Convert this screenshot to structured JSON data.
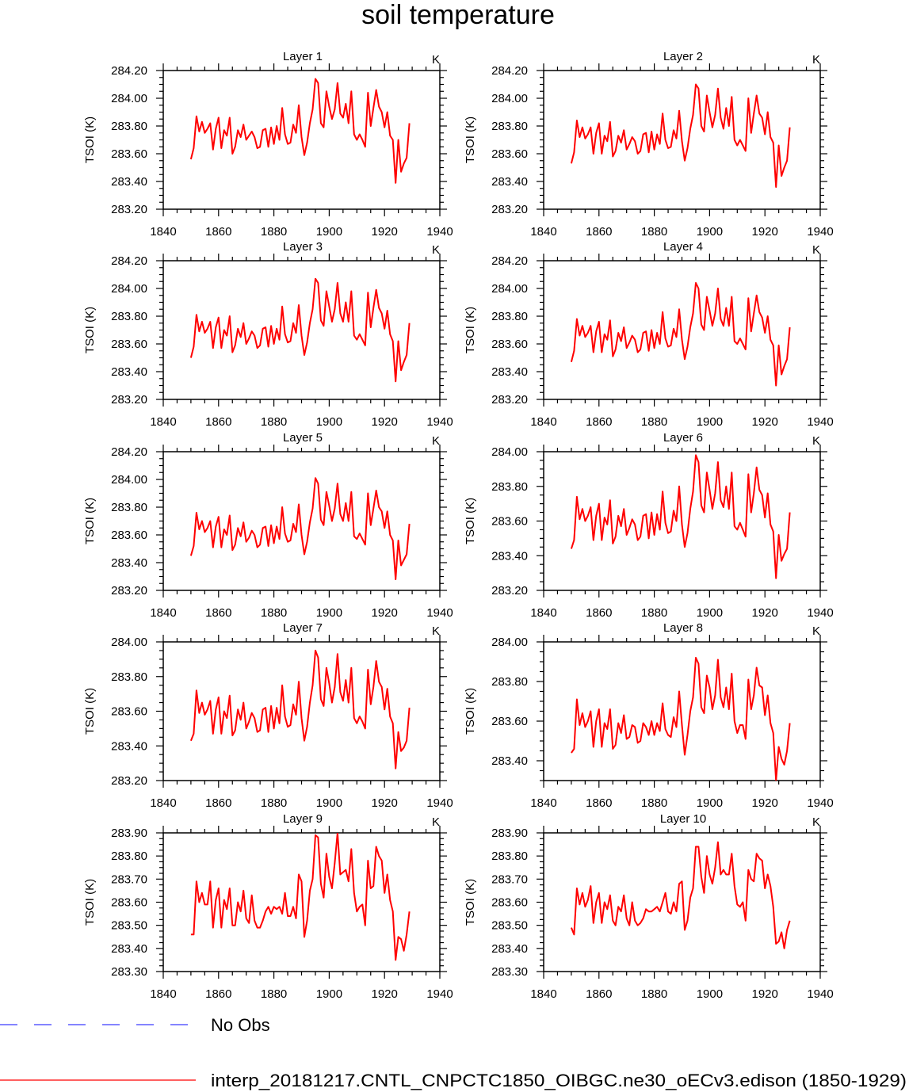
{
  "chart_data": {
    "type": "line",
    "title": "soil temperature",
    "ylabel": "TSOI  (K)",
    "units_label": "K",
    "x_ticks": [
      1840,
      1860,
      1880,
      1900,
      1920,
      1940
    ],
    "xlim": [
      1840,
      1940
    ],
    "x": [
      1850,
      1851,
      1852,
      1853,
      1854,
      1855,
      1856,
      1857,
      1858,
      1859,
      1860,
      1861,
      1862,
      1863,
      1864,
      1865,
      1866,
      1867,
      1868,
      1869,
      1870,
      1871,
      1872,
      1873,
      1874,
      1875,
      1876,
      1877,
      1878,
      1879,
      1880,
      1881,
      1882,
      1883,
      1884,
      1885,
      1886,
      1887,
      1888,
      1889,
      1890,
      1891,
      1892,
      1893,
      1894,
      1895,
      1896,
      1897,
      1898,
      1899,
      1900,
      1901,
      1902,
      1903,
      1904,
      1905,
      1906,
      1907,
      1908,
      1909,
      1910,
      1911,
      1912,
      1913,
      1914,
      1915,
      1916,
      1917,
      1918,
      1919,
      1920,
      1921,
      1922,
      1923,
      1924,
      1925,
      1926,
      1927,
      1928,
      1929
    ],
    "line_color": "#ff0000",
    "obs_color": "#3a3aff",
    "panels": [
      {
        "title": "Layer 1",
        "ylim": [
          283.2,
          284.2
        ],
        "y_ticks": [
          "283.20",
          "283.40",
          "283.60",
          "283.80",
          "284.00",
          "284.20"
        ],
        "values": [
          283.56,
          283.64,
          283.87,
          283.76,
          283.83,
          283.75,
          283.78,
          283.82,
          283.63,
          283.78,
          283.86,
          283.64,
          283.77,
          283.73,
          283.86,
          283.6,
          283.65,
          283.77,
          283.72,
          283.81,
          283.7,
          283.73,
          283.76,
          283.72,
          283.64,
          283.65,
          283.77,
          283.78,
          283.65,
          283.79,
          283.67,
          283.8,
          283.7,
          283.93,
          283.74,
          283.67,
          283.68,
          283.81,
          283.75,
          283.95,
          283.72,
          283.59,
          283.68,
          283.82,
          283.92,
          284.14,
          284.11,
          283.82,
          283.79,
          284.05,
          283.94,
          283.85,
          283.92,
          284.11,
          283.89,
          283.86,
          283.96,
          283.82,
          284.05,
          283.74,
          283.7,
          283.74,
          283.7,
          283.65,
          284.04,
          283.8,
          283.93,
          284.06,
          283.94,
          283.9,
          283.79,
          283.9,
          283.73,
          283.7,
          283.39,
          283.7,
          283.47,
          283.53,
          283.57,
          283.82
        ]
      },
      {
        "title": "Layer 2",
        "ylim": [
          283.2,
          284.2
        ],
        "y_ticks": [
          "283.20",
          "283.40",
          "283.60",
          "283.80",
          "284.00",
          "284.20"
        ],
        "values": [
          283.53,
          283.61,
          283.84,
          283.72,
          283.79,
          283.71,
          283.74,
          283.79,
          283.6,
          283.75,
          283.82,
          283.6,
          283.73,
          283.69,
          283.83,
          283.58,
          283.62,
          283.73,
          283.68,
          283.77,
          283.63,
          283.67,
          283.72,
          283.69,
          283.6,
          283.62,
          283.74,
          283.75,
          283.61,
          283.76,
          283.63,
          283.74,
          283.67,
          283.89,
          283.7,
          283.64,
          283.65,
          283.77,
          283.71,
          283.91,
          283.69,
          283.55,
          283.64,
          283.78,
          283.88,
          284.1,
          284.07,
          283.8,
          283.76,
          284.02,
          283.9,
          283.79,
          283.88,
          284.07,
          283.86,
          283.78,
          283.93,
          283.8,
          284.01,
          283.7,
          283.66,
          283.7,
          283.66,
          283.62,
          284.0,
          283.75,
          283.89,
          284.02,
          283.89,
          283.86,
          283.74,
          283.9,
          283.72,
          283.68,
          283.36,
          283.66,
          283.44,
          283.5,
          283.55,
          283.79
        ]
      },
      {
        "title": "Layer 3",
        "ylim": [
          283.2,
          284.2
        ],
        "y_ticks": [
          "283.20",
          "283.40",
          "283.60",
          "283.80",
          "284.00",
          "284.20"
        ],
        "values": [
          283.5,
          283.58,
          283.81,
          283.69,
          283.76,
          283.68,
          283.71,
          283.76,
          283.57,
          283.72,
          283.79,
          283.57,
          283.7,
          283.66,
          283.8,
          283.54,
          283.59,
          283.71,
          283.65,
          283.75,
          283.6,
          283.64,
          283.69,
          283.66,
          283.57,
          283.59,
          283.71,
          283.72,
          283.58,
          283.73,
          283.6,
          283.71,
          283.63,
          283.87,
          283.67,
          283.61,
          283.62,
          283.75,
          283.68,
          283.88,
          283.66,
          283.52,
          283.61,
          283.75,
          283.85,
          284.07,
          284.04,
          283.77,
          283.73,
          283.98,
          283.87,
          283.76,
          283.85,
          284.04,
          283.82,
          283.76,
          283.9,
          283.76,
          283.98,
          283.66,
          283.63,
          283.67,
          283.63,
          283.59,
          283.97,
          283.72,
          283.86,
          283.99,
          283.86,
          283.82,
          283.71,
          283.84,
          283.67,
          283.62,
          283.33,
          283.62,
          283.41,
          283.47,
          283.52,
          283.75
        ]
      },
      {
        "title": "Layer 4",
        "ylim": [
          283.2,
          284.2
        ],
        "y_ticks": [
          "283.20",
          "283.40",
          "283.60",
          "283.80",
          "284.00",
          "284.20"
        ],
        "values": [
          283.47,
          283.55,
          283.78,
          283.66,
          283.73,
          283.65,
          283.68,
          283.73,
          283.54,
          283.69,
          283.76,
          283.54,
          283.67,
          283.63,
          283.77,
          283.51,
          283.56,
          283.68,
          283.62,
          283.72,
          283.57,
          283.61,
          283.66,
          283.63,
          283.54,
          283.56,
          283.68,
          283.69,
          283.55,
          283.7,
          283.57,
          283.68,
          283.6,
          283.83,
          283.64,
          283.58,
          283.59,
          283.71,
          283.65,
          283.85,
          283.63,
          283.49,
          283.58,
          283.72,
          283.82,
          284.04,
          284.0,
          283.74,
          283.7,
          283.94,
          283.84,
          283.73,
          283.82,
          284.0,
          283.78,
          283.73,
          283.86,
          283.73,
          283.94,
          283.62,
          283.6,
          283.64,
          283.6,
          283.56,
          283.93,
          283.69,
          283.82,
          283.95,
          283.83,
          283.79,
          283.68,
          283.8,
          283.63,
          283.59,
          283.3,
          283.59,
          283.38,
          283.44,
          283.49,
          283.72
        ]
      },
      {
        "title": "Layer 5",
        "ylim": [
          283.2,
          284.2
        ],
        "y_ticks": [
          "283.20",
          "283.40",
          "283.60",
          "283.80",
          "284.00",
          "284.20"
        ],
        "values": [
          283.45,
          283.52,
          283.76,
          283.64,
          283.7,
          283.62,
          283.65,
          283.7,
          283.51,
          283.66,
          283.73,
          283.51,
          283.64,
          283.6,
          283.74,
          283.49,
          283.53,
          283.65,
          283.59,
          283.69,
          283.55,
          283.58,
          283.63,
          283.6,
          283.51,
          283.53,
          283.65,
          283.66,
          283.52,
          283.67,
          283.54,
          283.66,
          283.57,
          283.8,
          283.61,
          283.55,
          283.56,
          283.68,
          283.62,
          283.82,
          283.6,
          283.46,
          283.55,
          283.69,
          283.79,
          284.01,
          283.97,
          283.71,
          283.67,
          283.91,
          283.81,
          283.7,
          283.79,
          283.97,
          283.75,
          283.7,
          283.83,
          283.7,
          283.91,
          283.59,
          283.57,
          283.61,
          283.57,
          283.53,
          283.9,
          283.67,
          283.79,
          283.92,
          283.8,
          283.77,
          283.65,
          283.77,
          283.6,
          283.56,
          283.28,
          283.56,
          283.38,
          283.42,
          283.46,
          283.68
        ]
      },
      {
        "title": "Layer 6",
        "ylim": [
          283.2,
          284.0
        ],
        "y_ticks": [
          "283.20",
          "283.40",
          "283.60",
          "283.80",
          "284.00"
        ],
        "values": [
          283.44,
          283.49,
          283.74,
          283.61,
          283.67,
          283.6,
          283.63,
          283.68,
          283.49,
          283.63,
          283.7,
          283.49,
          283.62,
          283.58,
          283.72,
          283.47,
          283.51,
          283.63,
          283.57,
          283.67,
          283.52,
          283.56,
          283.61,
          283.58,
          283.49,
          283.51,
          283.63,
          283.64,
          283.5,
          283.65,
          283.52,
          283.64,
          283.55,
          283.77,
          283.59,
          283.53,
          283.54,
          283.66,
          283.6,
          283.8,
          283.58,
          283.45,
          283.53,
          283.67,
          283.77,
          283.98,
          283.94,
          283.69,
          283.65,
          283.88,
          283.78,
          283.67,
          283.76,
          283.94,
          283.72,
          283.68,
          283.8,
          283.67,
          283.88,
          283.57,
          283.55,
          283.59,
          283.55,
          283.51,
          283.87,
          283.65,
          283.76,
          283.91,
          283.78,
          283.75,
          283.62,
          283.76,
          283.58,
          283.54,
          283.27,
          283.52,
          283.37,
          283.41,
          283.44,
          283.65
        ]
      },
      {
        "title": "Layer 7",
        "ylim": [
          283.2,
          284.0
        ],
        "y_ticks": [
          "283.20",
          "283.40",
          "283.60",
          "283.80",
          "284.00"
        ],
        "values": [
          283.43,
          283.47,
          283.72,
          283.59,
          283.65,
          283.58,
          283.61,
          283.66,
          283.47,
          283.61,
          283.68,
          283.47,
          283.6,
          283.56,
          283.69,
          283.46,
          283.49,
          283.61,
          283.55,
          283.65,
          283.5,
          283.54,
          283.59,
          283.56,
          283.48,
          283.49,
          283.61,
          283.62,
          283.48,
          283.63,
          283.5,
          283.62,
          283.53,
          283.75,
          283.57,
          283.51,
          283.52,
          283.64,
          283.58,
          283.77,
          283.56,
          283.43,
          283.51,
          283.65,
          283.75,
          283.95,
          283.91,
          283.67,
          283.63,
          283.85,
          283.76,
          283.65,
          283.74,
          283.93,
          283.71,
          283.66,
          283.78,
          283.65,
          283.85,
          283.56,
          283.53,
          283.57,
          283.54,
          283.5,
          283.84,
          283.64,
          283.74,
          283.89,
          283.77,
          283.74,
          283.61,
          283.73,
          283.57,
          283.53,
          283.27,
          283.48,
          283.37,
          283.39,
          283.43,
          283.62
        ]
      },
      {
        "title": "Layer 8",
        "ylim": [
          283.3,
          284.0
        ],
        "y_ticks": [
          "283.40",
          "283.60",
          "283.80",
          "284.00"
        ],
        "values": [
          283.44,
          283.46,
          283.71,
          283.58,
          283.64,
          283.57,
          283.6,
          283.65,
          283.47,
          283.6,
          283.66,
          283.47,
          283.59,
          283.56,
          283.66,
          283.46,
          283.48,
          283.59,
          283.54,
          283.63,
          283.51,
          283.52,
          283.58,
          283.57,
          283.49,
          283.5,
          283.59,
          283.57,
          283.53,
          283.6,
          283.53,
          283.59,
          283.55,
          283.69,
          283.56,
          283.53,
          283.52,
          283.62,
          283.57,
          283.75,
          283.58,
          283.43,
          283.53,
          283.65,
          283.72,
          283.92,
          283.89,
          283.67,
          283.64,
          283.83,
          283.77,
          283.66,
          283.73,
          283.91,
          283.72,
          283.67,
          283.77,
          283.66,
          283.84,
          283.6,
          283.54,
          283.58,
          283.58,
          283.51,
          283.81,
          283.66,
          283.73,
          283.87,
          283.78,
          283.77,
          283.63,
          283.73,
          283.59,
          283.54,
          283.3,
          283.47,
          283.41,
          283.38,
          283.45,
          283.59
        ]
      },
      {
        "title": "Layer 9",
        "ylim": [
          283.3,
          283.9
        ],
        "y_ticks": [
          "283.30",
          "283.40",
          "283.50",
          "283.60",
          "283.70",
          "283.80",
          "283.90"
        ],
        "values": [
          283.46,
          283.46,
          283.69,
          283.6,
          283.64,
          283.59,
          283.59,
          283.69,
          283.49,
          283.61,
          283.66,
          283.49,
          283.61,
          283.57,
          283.66,
          283.5,
          283.5,
          283.6,
          283.56,
          283.65,
          283.53,
          283.51,
          283.63,
          283.52,
          283.49,
          283.49,
          283.52,
          283.56,
          283.58,
          283.55,
          283.58,
          283.57,
          283.58,
          283.55,
          283.64,
          283.54,
          283.54,
          283.58,
          283.53,
          283.72,
          283.69,
          283.45,
          283.52,
          283.65,
          283.7,
          283.89,
          283.88,
          283.68,
          283.62,
          283.81,
          283.71,
          283.66,
          283.77,
          283.9,
          283.72,
          283.73,
          283.74,
          283.69,
          283.83,
          283.64,
          283.56,
          283.58,
          283.59,
          283.5,
          283.78,
          283.66,
          283.67,
          283.84,
          283.8,
          283.78,
          283.64,
          283.72,
          283.61,
          283.56,
          283.35,
          283.45,
          283.44,
          283.39,
          283.46,
          283.56
        ]
      },
      {
        "title": "Layer 10",
        "ylim": [
          283.3,
          283.9
        ],
        "y_ticks": [
          "283.30",
          "283.40",
          "283.50",
          "283.60",
          "283.70",
          "283.80",
          "283.90"
        ],
        "values": [
          283.49,
          283.46,
          283.66,
          283.59,
          283.64,
          283.58,
          283.61,
          283.67,
          283.51,
          283.6,
          283.64,
          283.51,
          283.6,
          283.57,
          283.63,
          283.52,
          283.5,
          283.58,
          283.56,
          283.63,
          283.53,
          283.5,
          283.6,
          283.52,
          283.5,
          283.51,
          283.53,
          283.57,
          283.56,
          283.56,
          283.57,
          283.58,
          283.56,
          283.6,
          283.64,
          283.56,
          283.55,
          283.6,
          283.56,
          283.68,
          283.69,
          283.48,
          283.52,
          283.62,
          283.66,
          283.84,
          283.84,
          283.71,
          283.64,
          283.8,
          283.72,
          283.68,
          283.75,
          283.86,
          283.72,
          283.74,
          283.72,
          283.72,
          283.81,
          283.67,
          283.59,
          283.58,
          283.6,
          283.52,
          283.74,
          283.7,
          283.69,
          283.81,
          283.79,
          283.78,
          283.66,
          283.72,
          283.67,
          283.58,
          283.42,
          283.43,
          283.47,
          283.4,
          283.48,
          283.52
        ]
      }
    ],
    "legend": [
      {
        "label": "No Obs",
        "style": "dashed"
      },
      {
        "label": "interp_20181217.CNTL_CNPCTC1850_OIBGC.ne30_oECv3.edison (1850-1929)",
        "style": "solid"
      }
    ]
  }
}
